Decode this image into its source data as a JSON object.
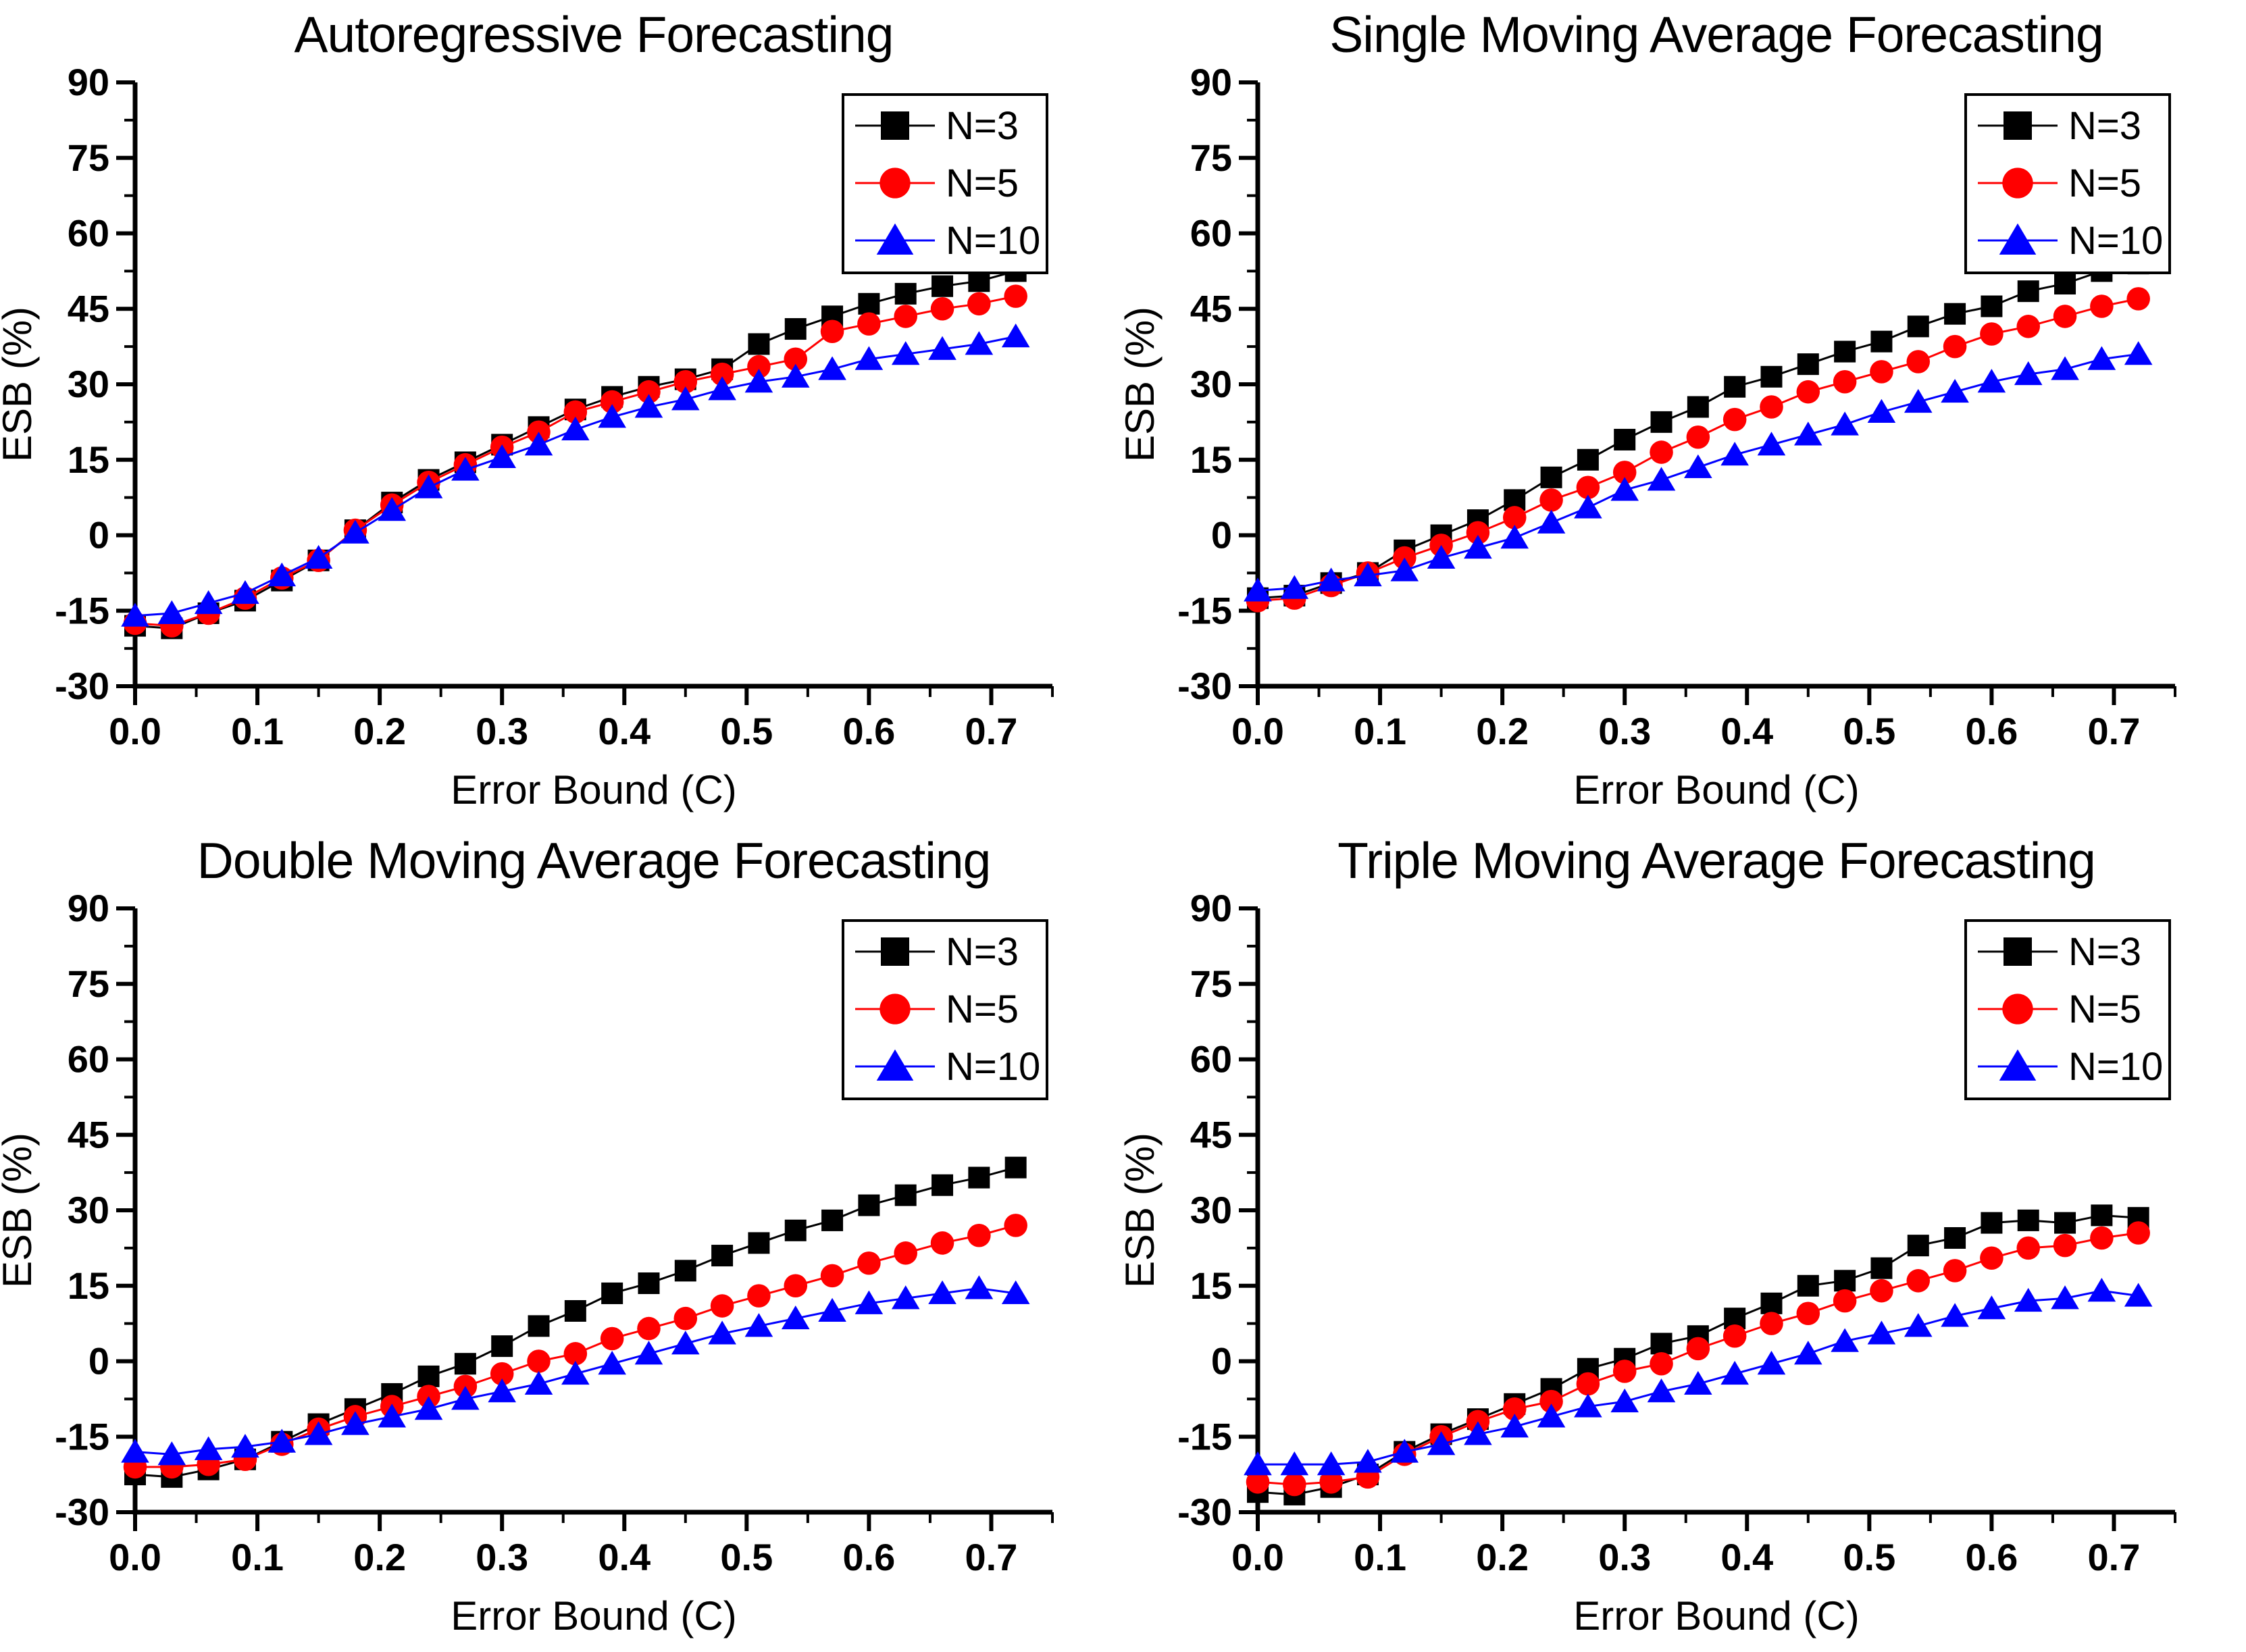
{
  "chart_data": {
    "type": "line",
    "xlabel": "Error Bound (C)",
    "ylabel": "ESB (%)",
    "xlim": [
      0,
      0.75
    ],
    "ylim": [
      -30,
      90
    ],
    "grid": false,
    "legend_position": "top-right",
    "legend": [
      "N=3",
      "N=5",
      "N=10"
    ],
    "x_ticks": [
      0.0,
      0.1,
      0.2,
      0.3,
      0.4,
      0.5,
      0.6,
      0.7
    ],
    "x_tick_labels": [
      "0.0",
      "0.1",
      "0.2",
      "0.3",
      "0.4",
      "0.5",
      "0.6",
      "0.7"
    ],
    "y_ticks": [
      -30,
      -15,
      0,
      15,
      30,
      45,
      60,
      75,
      90
    ],
    "y_tick_labels": [
      "-30",
      "-15",
      "0",
      "15",
      "30",
      "45",
      "60",
      "75",
      "90"
    ],
    "series_style": {
      "N=3": {
        "color": "#000000",
        "marker": "square"
      },
      "N=5": {
        "color": "#ff0000",
        "marker": "circle"
      },
      "N=10": {
        "color": "#0000ff",
        "marker": "triangle"
      }
    },
    "x": [
      0.0,
      0.03,
      0.06,
      0.09,
      0.12,
      0.15,
      0.18,
      0.21,
      0.24,
      0.27,
      0.3,
      0.33,
      0.36,
      0.39,
      0.42,
      0.45,
      0.48,
      0.51,
      0.54,
      0.57,
      0.6,
      0.63,
      0.66,
      0.69,
      0.72
    ],
    "charts": [
      {
        "title": "Autoregressive Forecasting",
        "series": [
          {
            "name": "N=3",
            "values": [
              -18,
              -18.5,
              -15.5,
              -13,
              -9,
              -5,
              1,
              6.5,
              11,
              14.5,
              18,
              21.5,
              25,
              27.5,
              29.5,
              31,
              33,
              38,
              41,
              43.5,
              46,
              48,
              49.5,
              50.5,
              52.5
            ]
          },
          {
            "name": "N=5",
            "values": [
              -17.5,
              -18,
              -15.5,
              -12.5,
              -8.5,
              -5,
              1,
              6,
              10.5,
              14,
              17.5,
              20.5,
              24.5,
              26.5,
              28.5,
              30.5,
              32,
              33.5,
              35,
              40.5,
              42,
              43.5,
              45,
              46,
              47.5
            ]
          },
          {
            "name": "N=10",
            "values": [
              -16,
              -15.5,
              -13.5,
              -11.5,
              -8,
              -4.5,
              0.5,
              5,
              9.5,
              13,
              15.5,
              18,
              21,
              23.5,
              25.5,
              27,
              29,
              30.5,
              31.5,
              33,
              35,
              36,
              37,
              38,
              39.5
            ]
          }
        ]
      },
      {
        "title": "Single Moving Average Forecasting",
        "series": [
          {
            "name": "N=3",
            "values": [
              -12.5,
              -12,
              -9.5,
              -7.5,
              -3,
              0,
              3,
              7,
              11.5,
              15,
              19,
              22.5,
              25.5,
              29.5,
              31.5,
              34,
              36.5,
              38.5,
              41.5,
              44,
              45.5,
              48.5,
              50,
              52.5,
              54
            ]
          },
          {
            "name": "N=5",
            "values": [
              -13,
              -12.5,
              -10,
              -7.5,
              -4.5,
              -2,
              0.5,
              3.5,
              7,
              9.5,
              12.5,
              16.5,
              19.5,
              23,
              25.5,
              28.5,
              30.5,
              32.5,
              34.5,
              37.5,
              40,
              41.5,
              43.5,
              45.5,
              47
            ]
          },
          {
            "name": "N=10",
            "values": [
              -11,
              -10.5,
              -9,
              -8,
              -7,
              -4.5,
              -2.5,
              -0.5,
              2.5,
              5.5,
              9,
              11,
              13.5,
              16,
              18,
              20,
              22,
              24.5,
              26.5,
              28.5,
              30.5,
              32,
              33,
              35,
              36
            ]
          }
        ]
      },
      {
        "title": "Double Moving Average Forecasting",
        "series": [
          {
            "name": "N=3",
            "values": [
              -22.5,
              -23,
              -21.5,
              -19.5,
              -16,
              -12.5,
              -9.5,
              -6.5,
              -3,
              -0.5,
              3,
              7,
              10,
              13.5,
              15.5,
              18,
              21,
              23.5,
              26,
              28,
              31,
              33,
              35,
              36.5,
              38.5
            ]
          },
          {
            "name": "N=5",
            "values": [
              -21,
              -21,
              -20.5,
              -19.5,
              -16.5,
              -13.5,
              -11,
              -9,
              -7,
              -5,
              -2.5,
              0,
              1.5,
              4.5,
              6.5,
              8.5,
              11,
              13,
              15,
              17,
              19.5,
              21.5,
              23.5,
              25,
              27
            ]
          },
          {
            "name": "N=10",
            "values": [
              -18,
              -18.5,
              -17.5,
              -17,
              -16,
              -14.5,
              -12.5,
              -11,
              -9.5,
              -7.5,
              -6,
              -4.5,
              -2.5,
              -0.5,
              1.5,
              3.5,
              5.5,
              7,
              8.5,
              10,
              11.5,
              12.5,
              13.5,
              14.5,
              13.5
            ]
          }
        ]
      },
      {
        "title": "Triple Moving Average Forecasting",
        "series": [
          {
            "name": "N=3",
            "values": [
              -26,
              -26.5,
              -25,
              -22.5,
              -18,
              -14.5,
              -11.5,
              -8.5,
              -5.5,
              -1.5,
              0.5,
              3.5,
              5,
              8.5,
              11.5,
              15,
              16,
              18.5,
              23,
              24.5,
              27.5,
              28,
              27.5,
              29,
              28.5
            ]
          },
          {
            "name": "N=5",
            "values": [
              -24,
              -24.5,
              -24,
              -23,
              -18.5,
              -15,
              -12,
              -9.5,
              -8,
              -4.5,
              -2,
              -0.5,
              2.5,
              5,
              7.5,
              9.5,
              12,
              14,
              16,
              18,
              20.5,
              22.5,
              23,
              24.5,
              25.5
            ]
          },
          {
            "name": "N=10",
            "values": [
              -20.5,
              -20.5,
              -20.5,
              -20,
              -18,
              -16.5,
              -14.5,
              -13,
              -11,
              -9,
              -8,
              -6,
              -4.5,
              -2.5,
              -0.5,
              1.5,
              4,
              5.5,
              7,
              9,
              10.5,
              12,
              12.5,
              14,
              13
            ]
          }
        ]
      }
    ]
  }
}
